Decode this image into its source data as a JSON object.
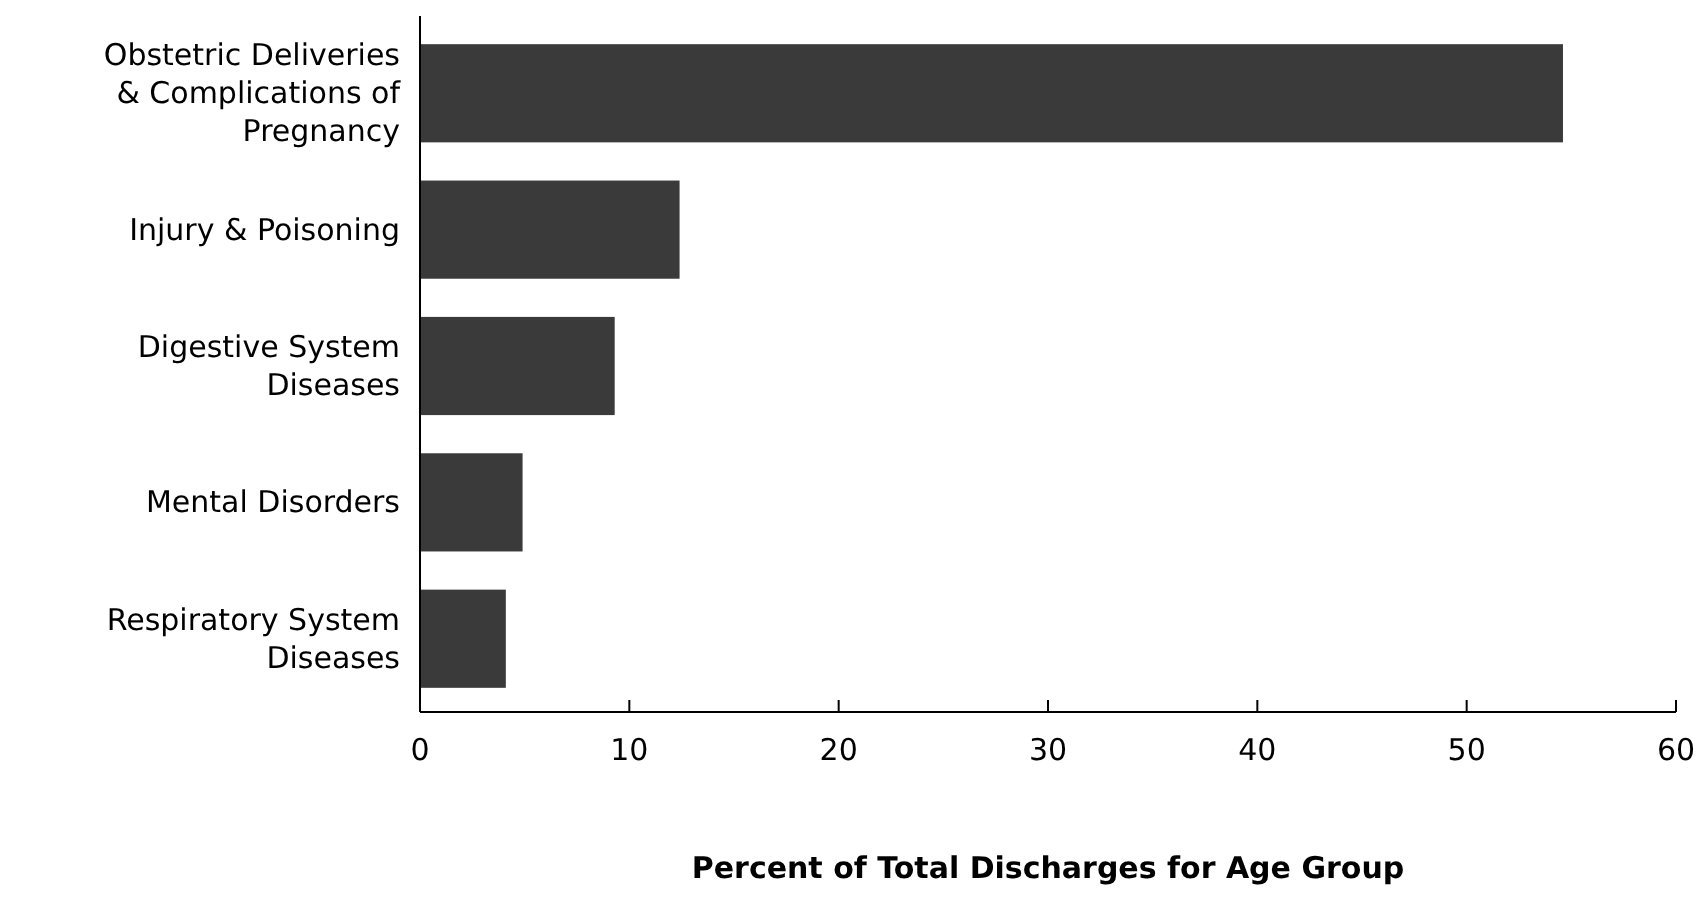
{
  "chart_data": {
    "type": "bar",
    "orientation": "horizontal",
    "xlabel": "Percent of Total Discharges for Age Group",
    "categories": [
      "Obstetric Deliveries\n& Complications of\nPregnancy",
      "Injury & Poisoning",
      "Digestive System\nDiseases",
      "Mental Disorders",
      "Respiratory System\nDiseases"
    ],
    "values": [
      54.6,
      12.4,
      9.3,
      4.9,
      4.1
    ],
    "color": "#3a3a3a",
    "xlim": [
      0,
      60
    ],
    "xticks": [
      0,
      10,
      20,
      30,
      40,
      50,
      60
    ],
    "grid": false
  }
}
